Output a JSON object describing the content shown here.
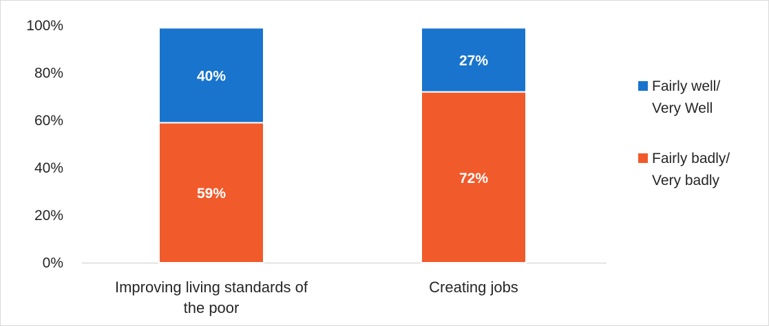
{
  "chart_data": {
    "type": "bar",
    "stacked": true,
    "categories": [
      "Improving living standards of the poor",
      "Creating jobs"
    ],
    "category_label_lines": [
      [
        "Improving living standards of",
        "the poor"
      ],
      [
        "Creating jobs"
      ]
    ],
    "series": [
      {
        "name": "Fairly badly/ Very badly",
        "name_lines": [
          "Fairly badly/",
          "Very badly"
        ],
        "values": [
          59,
          72
        ],
        "labels": [
          "59%",
          "72%"
        ],
        "color": "#f15a2b"
      },
      {
        "name": "Fairly well/ Very Well",
        "name_lines": [
          "Fairly well/",
          "Very Well"
        ],
        "values": [
          40,
          27
        ],
        "labels": [
          "40%",
          "27%"
        ],
        "color": "#1874cd"
      }
    ],
    "title": "",
    "xlabel": "",
    "ylabel": "",
    "ylim": [
      0,
      100
    ],
    "y_ticks": [
      0,
      20,
      40,
      60,
      80,
      100
    ],
    "y_tick_labels": [
      "0%",
      "20%",
      "40%",
      "60%",
      "80%",
      "100%"
    ],
    "grid": false,
    "legend_position": "right",
    "legend_order": [
      "Fairly well/ Very Well",
      "Fairly badly/ Very badly"
    ]
  }
}
